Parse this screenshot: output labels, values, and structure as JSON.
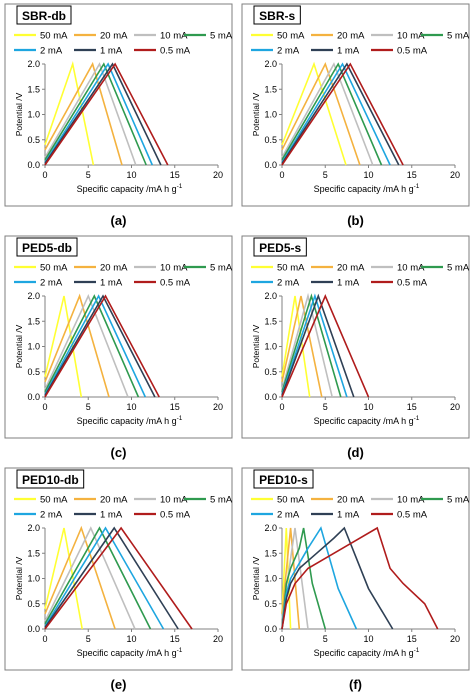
{
  "legend": {
    "entries": [
      "50 mA",
      "20 mA",
      "10 mA",
      "5 mA",
      "2 mA",
      "1 mA",
      "0.5 mA"
    ],
    "colors": [
      "#ffff33",
      "#f4b23f",
      "#bfbfbf",
      "#2f9a4f",
      "#1ea6e0",
      "#2f4055",
      "#b01c1c"
    ]
  },
  "chart_data": [
    {
      "type": "line",
      "title": "SBR-db",
      "caption": "(a)",
      "xlabel": "Specific capacity /mA h g",
      "xlabel_sup": "-1",
      "ylabel": "Potential /V",
      "xlim": [
        0,
        20
      ],
      "ylim": [
        0,
        2.0
      ],
      "xticks": [
        "0",
        "5",
        "10",
        "15",
        "20"
      ],
      "yticks": [
        "0.0",
        "0.5",
        "1.0",
        "1.5",
        "2.0"
      ],
      "series": [
        {
          "name": "50 mA",
          "x": [
            0,
            3.2,
            5.6
          ],
          "y": [
            0.4,
            2.0,
            0
          ]
        },
        {
          "name": "20 mA",
          "x": [
            0,
            5.5,
            8.9
          ],
          "y": [
            0.3,
            2.0,
            0
          ]
        },
        {
          "name": "10 mA",
          "x": [
            0,
            6.3,
            10.5
          ],
          "y": [
            0.15,
            2.0,
            0
          ]
        },
        {
          "name": "5 mA",
          "x": [
            0,
            6.8,
            11.7
          ],
          "y": [
            0.1,
            2.0,
            0
          ]
        },
        {
          "name": "2 mA",
          "x": [
            0,
            7.3,
            12.4
          ],
          "y": [
            0.05,
            2.0,
            0
          ]
        },
        {
          "name": "1 mA",
          "x": [
            0,
            7.8,
            13.4
          ],
          "y": [
            0.03,
            2.0,
            0
          ]
        },
        {
          "name": "0.5 mA",
          "x": [
            0,
            8.1,
            14.2
          ],
          "y": [
            0.0,
            2.0,
            0
          ]
        }
      ]
    },
    {
      "type": "line",
      "title": "SBR-s",
      "caption": "(b)",
      "xlabel": "Specific capacity /mA h g",
      "xlabel_sup": "-1",
      "ylabel": "Potential /V",
      "xlim": [
        0,
        20
      ],
      "ylim": [
        0,
        2.0
      ],
      "xticks": [
        "0",
        "5",
        "10",
        "15",
        "20"
      ],
      "yticks": [
        "0.0",
        "0.5",
        "1.0",
        "1.5",
        "2.0"
      ],
      "series": [
        {
          "name": "50 mA",
          "x": [
            0,
            3.7,
            7.4
          ],
          "y": [
            0.4,
            2.0,
            0
          ]
        },
        {
          "name": "20 mA",
          "x": [
            0,
            5.0,
            9.0
          ],
          "y": [
            0.3,
            2.0,
            0
          ]
        },
        {
          "name": "10 mA",
          "x": [
            0,
            6.0,
            10.5
          ],
          "y": [
            0.15,
            2.0,
            0
          ]
        },
        {
          "name": "5 mA",
          "x": [
            0,
            6.5,
            11.5
          ],
          "y": [
            0.1,
            2.0,
            0
          ]
        },
        {
          "name": "2 mA",
          "x": [
            0,
            7.0,
            12.5
          ],
          "y": [
            0.05,
            2.0,
            0
          ]
        },
        {
          "name": "1 mA",
          "x": [
            0,
            7.5,
            13.5
          ],
          "y": [
            0.03,
            2.0,
            0
          ]
        },
        {
          "name": "0.5 mA",
          "x": [
            0,
            7.9,
            14.0
          ],
          "y": [
            0.0,
            2.0,
            0
          ]
        }
      ]
    },
    {
      "type": "line",
      "title": "PED5-db",
      "caption": "(c)",
      "xlabel": "Specific capacity /mA h g",
      "xlabel_sup": "-1",
      "ylabel": "Potential /V",
      "xlim": [
        0,
        20
      ],
      "ylim": [
        0,
        2.0
      ],
      "xticks": [
        "0",
        "5",
        "10",
        "15",
        "20"
      ],
      "yticks": [
        "0.0",
        "0.5",
        "1.0",
        "1.5",
        "2.0"
      ],
      "series": [
        {
          "name": "50 mA",
          "x": [
            0,
            2.2,
            4.2
          ],
          "y": [
            0.4,
            2.0,
            0
          ]
        },
        {
          "name": "20 mA",
          "x": [
            0,
            4.0,
            7.4
          ],
          "y": [
            0.3,
            2.0,
            0
          ]
        },
        {
          "name": "10 mA",
          "x": [
            0,
            5.0,
            9.6
          ],
          "y": [
            0.15,
            2.0,
            0
          ]
        },
        {
          "name": "5 mA",
          "x": [
            0,
            5.7,
            10.8
          ],
          "y": [
            0.1,
            2.0,
            0
          ]
        },
        {
          "name": "2 mA",
          "x": [
            0,
            6.2,
            11.6
          ],
          "y": [
            0.05,
            2.0,
            0
          ]
        },
        {
          "name": "1 mA",
          "x": [
            0,
            6.7,
            12.7
          ],
          "y": [
            0.03,
            2.0,
            0
          ]
        },
        {
          "name": "0.5 mA",
          "x": [
            0,
            7.0,
            13.2
          ],
          "y": [
            0.0,
            2.0,
            0
          ]
        }
      ]
    },
    {
      "type": "line",
      "title": "PED5-s",
      "caption": "(d)",
      "xlabel": "Specific capacity /mA h g",
      "xlabel_sup": "-1",
      "ylabel": "Potential /V",
      "xlim": [
        0,
        20
      ],
      "ylim": [
        0,
        2.0
      ],
      "xticks": [
        "0",
        "5",
        "10",
        "15",
        "20"
      ],
      "yticks": [
        "0.0",
        "0.5",
        "1.0",
        "1.5",
        "2.0"
      ],
      "series": [
        {
          "name": "50 mA",
          "x": [
            0,
            1.5,
            3.2
          ],
          "y": [
            0.4,
            2.0,
            0
          ]
        },
        {
          "name": "20 mA",
          "x": [
            0,
            2.2,
            4.6
          ],
          "y": [
            0.3,
            2.0,
            0
          ]
        },
        {
          "name": "10 mA",
          "x": [
            0,
            3.0,
            5.8
          ],
          "y": [
            0.15,
            2.0,
            0
          ]
        },
        {
          "name": "5 mA",
          "x": [
            0,
            3.4,
            6.8
          ],
          "y": [
            0.1,
            2.0,
            0
          ]
        },
        {
          "name": "2 mA",
          "x": [
            0,
            3.8,
            7.5
          ],
          "y": [
            0.05,
            2.0,
            0
          ]
        },
        {
          "name": "1 mA",
          "x": [
            0,
            4.2,
            8.3
          ],
          "y": [
            0.03,
            2.0,
            0
          ]
        },
        {
          "name": "0.5 mA",
          "x": [
            0,
            5.0,
            10.0
          ],
          "y": [
            0.0,
            2.0,
            0
          ]
        }
      ]
    },
    {
      "type": "line",
      "title": "PED10-db",
      "caption": "(e)",
      "xlabel": "Specific capacity /mA h g",
      "xlabel_sup": "-1",
      "ylabel": "Potential /V",
      "xlim": [
        0,
        20
      ],
      "ylim": [
        0,
        2.0
      ],
      "xticks": [
        "0",
        "5",
        "10",
        "15",
        "20"
      ],
      "yticks": [
        "0.0",
        "0.5",
        "1.0",
        "1.5",
        "2.0"
      ],
      "series": [
        {
          "name": "50 mA",
          "x": [
            0,
            2.2,
            4.3
          ],
          "y": [
            0.4,
            2.0,
            0
          ]
        },
        {
          "name": "20 mA",
          "x": [
            0,
            4.2,
            8.1
          ],
          "y": [
            0.3,
            2.0,
            0
          ]
        },
        {
          "name": "10 mA",
          "x": [
            0,
            5.3,
            10.4
          ],
          "y": [
            0.15,
            2.0,
            0
          ]
        },
        {
          "name": "5 mA",
          "x": [
            0,
            6.3,
            12.2
          ],
          "y": [
            0.1,
            2.0,
            0
          ]
        },
        {
          "name": "2 mA",
          "x": [
            0,
            7.0,
            13.7
          ],
          "y": [
            0.05,
            2.0,
            0
          ]
        },
        {
          "name": "1 mA",
          "x": [
            0,
            8.0,
            15.4
          ],
          "y": [
            0.03,
            2.0,
            0
          ]
        },
        {
          "name": "0.5 mA",
          "x": [
            0,
            8.8,
            17.0
          ],
          "y": [
            0.0,
            2.0,
            0
          ]
        }
      ]
    },
    {
      "type": "line",
      "title": "PED10-s",
      "caption": "(f)",
      "xlabel": "Specific capacity /mA h g",
      "xlabel_sup": "-1",
      "ylabel": "Potential /V",
      "xlim": [
        0,
        20
      ],
      "ylim": [
        0,
        2.0
      ],
      "xticks": [
        "0",
        "5",
        "10",
        "15",
        "20"
      ],
      "yticks": [
        "0.0",
        "0.5",
        "1.0",
        "1.5",
        "2.0"
      ],
      "series": [
        {
          "name": "50 mA",
          "x": [
            0,
            0.5,
            1.0
          ],
          "y": [
            0.3,
            2.0,
            0
          ]
        },
        {
          "name": "20 mA",
          "x": [
            0,
            1.0,
            2.0
          ],
          "y": [
            0.3,
            2.0,
            0
          ]
        },
        {
          "name": "10 mA",
          "x": [
            0,
            1.5,
            3.0
          ],
          "y": [
            0.2,
            2.0,
            0
          ]
        },
        {
          "name": "5 mA",
          "x": [
            0,
            0.5,
            1.0,
            2.0,
            2.5,
            3.5,
            5.0
          ],
          "y": [
            0.0,
            0.9,
            1.2,
            1.6,
            2.0,
            0.9,
            0
          ]
        },
        {
          "name": "2 mA",
          "x": [
            0,
            0.5,
            1.0,
            2.0,
            3.0,
            4.5,
            6.5,
            8.6
          ],
          "y": [
            0.0,
            0.7,
            1.0,
            1.3,
            1.6,
            2.0,
            0.8,
            0
          ]
        },
        {
          "name": "1 mA",
          "x": [
            0,
            0.5,
            1.0,
            2.0,
            4.0,
            6.0,
            7.2,
            10.0,
            12.8
          ],
          "y": [
            0.0,
            0.6,
            0.9,
            1.2,
            1.5,
            1.8,
            2.0,
            0.8,
            0
          ]
        },
        {
          "name": "0.5 mA",
          "x": [
            0,
            0.5,
            1.5,
            3.0,
            5.0,
            8.0,
            11.0,
            12.5,
            14.0,
            16.5,
            18.0
          ],
          "y": [
            0.0,
            0.5,
            0.9,
            1.2,
            1.4,
            1.7,
            2.0,
            1.2,
            0.9,
            0.5,
            0
          ]
        }
      ]
    }
  ]
}
